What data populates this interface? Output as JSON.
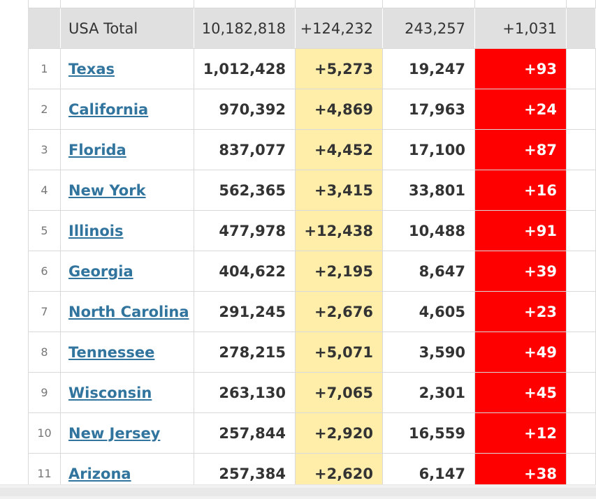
{
  "total": {
    "label": "USA Total",
    "total_cases": "10,182,818",
    "new_cases": "+124,232",
    "total_deaths": "243,257",
    "new_deaths": "+1,031"
  },
  "rows": [
    {
      "num": "1",
      "state": "Texas",
      "total_cases": "1,012,428",
      "new_cases": "+5,273",
      "total_deaths": "19,247",
      "new_deaths": "+93"
    },
    {
      "num": "2",
      "state": "California",
      "total_cases": "970,392",
      "new_cases": "+4,869",
      "total_deaths": "17,963",
      "new_deaths": "+24"
    },
    {
      "num": "3",
      "state": "Florida",
      "total_cases": "837,077",
      "new_cases": "+4,452",
      "total_deaths": "17,100",
      "new_deaths": "+87"
    },
    {
      "num": "4",
      "state": "New York",
      "total_cases": "562,365",
      "new_cases": "+3,415",
      "total_deaths": "33,801",
      "new_deaths": "+16"
    },
    {
      "num": "5",
      "state": "Illinois",
      "total_cases": "477,978",
      "new_cases": "+12,438",
      "total_deaths": "10,488",
      "new_deaths": "+91"
    },
    {
      "num": "6",
      "state": "Georgia",
      "total_cases": "404,622",
      "new_cases": "+2,195",
      "total_deaths": "8,647",
      "new_deaths": "+39"
    },
    {
      "num": "7",
      "state": "North Carolina",
      "total_cases": "291,245",
      "new_cases": "+2,676",
      "total_deaths": "4,605",
      "new_deaths": "+23"
    },
    {
      "num": "8",
      "state": "Tennessee",
      "total_cases": "278,215",
      "new_cases": "+5,071",
      "total_deaths": "3,590",
      "new_deaths": "+49"
    },
    {
      "num": "9",
      "state": "Wisconsin",
      "total_cases": "263,130",
      "new_cases": "+7,065",
      "total_deaths": "2,301",
      "new_deaths": "+45"
    },
    {
      "num": "10",
      "state": "New Jersey",
      "total_cases": "257,844",
      "new_cases": "+2,920",
      "total_deaths": "16,559",
      "new_deaths": "+12"
    },
    {
      "num": "11",
      "state": "Arizona",
      "total_cases": "257,384",
      "new_cases": "+2,620",
      "total_deaths": "6,147",
      "new_deaths": "+38"
    }
  ],
  "colors": {
    "new_cases_bg": "#ffeeaa",
    "new_deaths_bg": "#ff0000",
    "link": "#31749e",
    "total_row_bg": "#e0e0e0"
  }
}
